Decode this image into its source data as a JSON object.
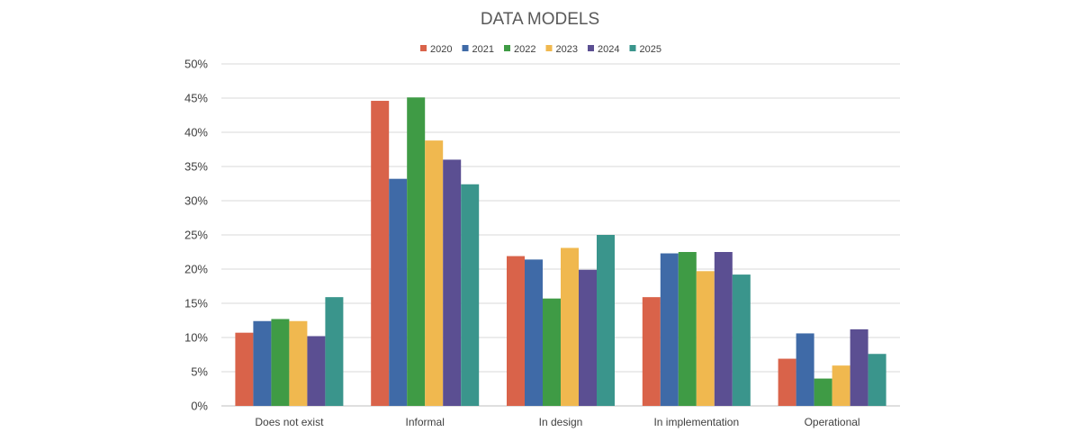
{
  "chart_data": {
    "type": "bar",
    "title": "DATA MODELS",
    "xlabel": "",
    "ylabel": "",
    "categories": [
      "Does not exist",
      "Informal",
      "In design",
      "In implementation",
      "Operational"
    ],
    "ylim": [
      0,
      50
    ],
    "yticks": [
      "0%",
      "5%",
      "10%",
      "15%",
      "20%",
      "25%",
      "30%",
      "35%",
      "40%",
      "45%",
      "50%"
    ],
    "grid": true,
    "legend_position": "top",
    "series": [
      {
        "name": "2020",
        "color": "#d9634a",
        "values": [
          10.7,
          44.6,
          21.9,
          15.9,
          6.9
        ]
      },
      {
        "name": "2021",
        "color": "#3f6aa7",
        "values": [
          12.4,
          33.2,
          21.4,
          22.3,
          10.6
        ]
      },
      {
        "name": "2022",
        "color": "#3f9b45",
        "values": [
          12.7,
          45.1,
          15.7,
          22.5,
          4.0
        ]
      },
      {
        "name": "2023",
        "color": "#f0b84f",
        "values": [
          12.4,
          38.8,
          23.1,
          19.7,
          5.9
        ]
      },
      {
        "name": "2024",
        "color": "#5b4f92",
        "values": [
          10.2,
          36.0,
          19.9,
          22.5,
          11.2
        ]
      },
      {
        "name": "2025",
        "color": "#3a958c",
        "values": [
          15.9,
          32.4,
          25.0,
          19.2,
          7.6
        ]
      }
    ]
  }
}
